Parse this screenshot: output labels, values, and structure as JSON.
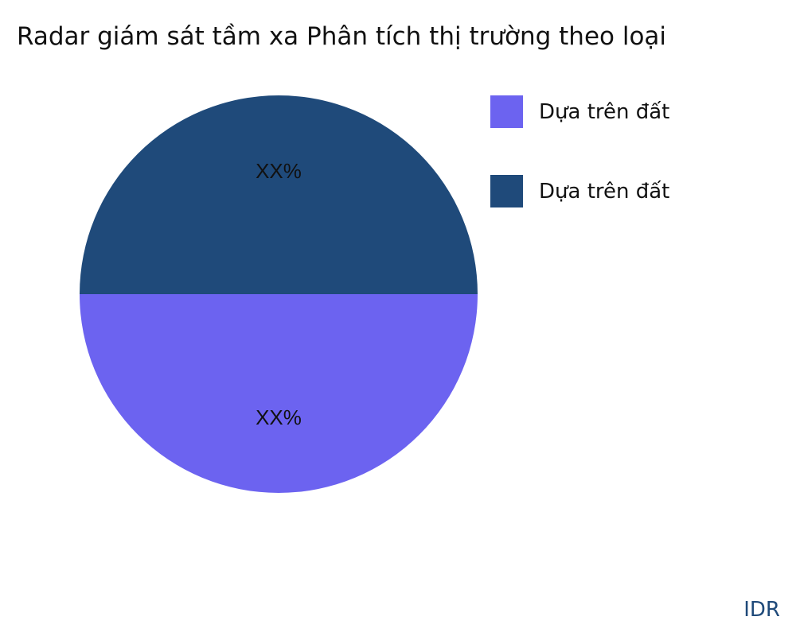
{
  "chart_data": {
    "type": "pie",
    "title": "Radar giám sát tầm xa Phân tích thị trường theo loại",
    "slices": [
      {
        "name": "Dựa trên đất",
        "value": 50,
        "label": "XX%",
        "color": "#6c63f0"
      },
      {
        "name": "Dựa trên đất",
        "value": 50,
        "label": "XX%",
        "color": "#1f4a7a"
      }
    ],
    "legend_position": "right"
  },
  "brand": "IDR"
}
